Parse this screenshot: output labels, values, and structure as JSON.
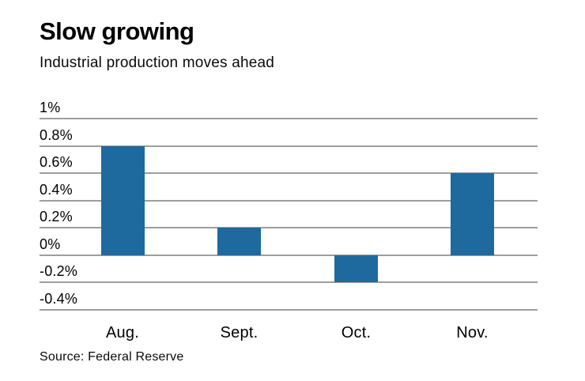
{
  "header": {
    "title": "Slow growing",
    "subtitle": "Industrial production moves ahead"
  },
  "footer": {
    "source": "Source: Federal Reserve"
  },
  "colors": {
    "bar": "#1e6a9f",
    "gridline": "#9e9e9e",
    "text": "#000000",
    "background": "#ffffff"
  },
  "chart_data": {
    "type": "bar",
    "categories": [
      "Aug.",
      "Sept.",
      "Oct.",
      "Nov."
    ],
    "values": [
      0.8,
      0.2,
      -0.2,
      0.6
    ],
    "title": "Slow growing",
    "subtitle": "Industrial production moves ahead",
    "xlabel": "",
    "ylabel": "",
    "ylim": [
      -0.4,
      1.0
    ],
    "yticks": [
      1.0,
      0.8,
      0.6,
      0.4,
      0.2,
      0,
      -0.2,
      -0.4
    ],
    "ytick_labels": [
      "1%",
      "0.8%",
      "0.6%",
      "0.4%",
      "0.2%",
      "0%",
      "-0.2%",
      "-0.4%"
    ],
    "grid": true,
    "legend": false,
    "source": "Source: Federal Reserve"
  }
}
